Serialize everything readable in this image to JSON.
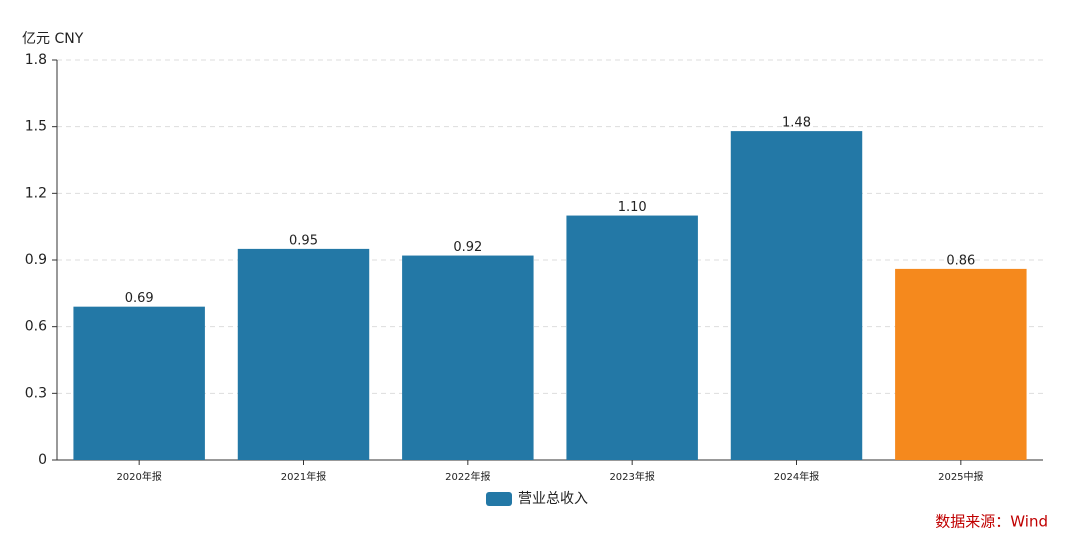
{
  "chart_data": {
    "type": "bar",
    "unit_label": "亿元  CNY",
    "categories": [
      "2020年报",
      "2021年报",
      "2022年报",
      "2023年报",
      "2024年报",
      "2025中报"
    ],
    "series": [
      {
        "name": "营业总收入",
        "color": "#2378a6",
        "colors": [
          "#2378a6",
          "#2378a6",
          "#2378a6",
          "#2378a6",
          "#2378a6",
          "#f5891d"
        ],
        "values": [
          0.69,
          0.95,
          0.92,
          1.1,
          1.48,
          0.86
        ],
        "value_labels": [
          "0.69",
          "0.95",
          "0.92",
          "1.10",
          "1.48",
          "0.86"
        ]
      }
    ],
    "ylim": [
      0,
      1.8
    ],
    "yticks": [
      0,
      0.3,
      0.6,
      0.9,
      1.2,
      1.5,
      1.8
    ],
    "grid": true,
    "source": "数据来源：Wind"
  }
}
